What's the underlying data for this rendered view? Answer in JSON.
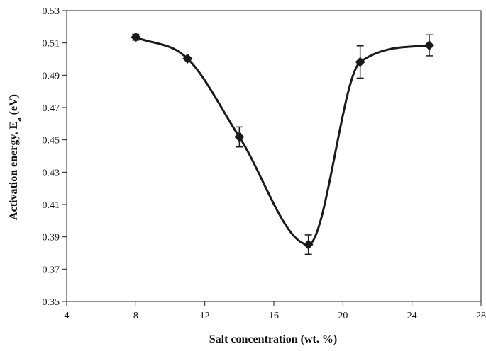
{
  "chart_data": {
    "type": "line",
    "xlabel": "Salt concentration (wt. %)",
    "ylabel_main": "Activation energy, E",
    "ylabel_sub": "a",
    "ylabel_unit": " (eV)",
    "xlim": [
      4,
      28
    ],
    "ylim": [
      0.35,
      0.53
    ],
    "x_ticks": [
      4,
      8,
      12,
      16,
      20,
      24,
      28
    ],
    "y_ticks": [
      0.35,
      0.37,
      0.39,
      0.41,
      0.43,
      0.45,
      0.47,
      0.49,
      0.51,
      0.53
    ],
    "x_tick_labels": [
      "4",
      "8",
      "12",
      "16",
      "20",
      "24",
      "28"
    ],
    "y_tick_labels": [
      "0.35",
      "0.37",
      "0.39",
      "0.41",
      "0.43",
      "0.45",
      "0.47",
      "0.49",
      "0.51",
      "0.53"
    ],
    "grid": false,
    "marker": "diamond",
    "line_style": "smooth",
    "color": "#1a1a1a",
    "series": [
      {
        "x": [
          8,
          11,
          14,
          18,
          21,
          25
        ],
        "y": [
          0.5135,
          0.5003,
          0.4518,
          0.3852,
          0.4982,
          0.5085
        ],
        "error": [
          0.0018,
          0.0008,
          0.0062,
          0.006,
          0.01,
          0.0065
        ]
      }
    ]
  }
}
